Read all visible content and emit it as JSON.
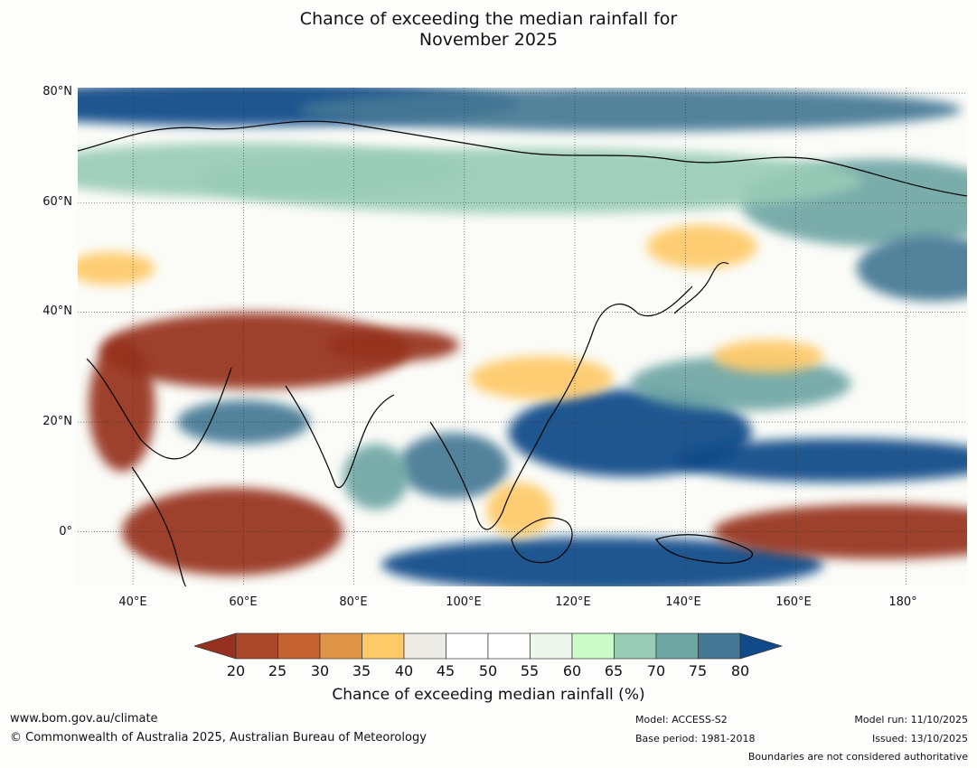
{
  "title": {
    "line1": "Chance of exceeding the median rainfall for",
    "line2": "November 2025"
  },
  "map": {
    "lat_ticks": [
      "80°N",
      "60°N",
      "40°N",
      "20°N",
      "0°"
    ],
    "lat_values": [
      80,
      60,
      40,
      20,
      0
    ],
    "lon_ticks": [
      "40°E",
      "60°E",
      "80°E",
      "100°E",
      "120°E",
      "140°E",
      "160°E",
      "180°"
    ],
    "lon_values": [
      40,
      60,
      80,
      100,
      120,
      140,
      160,
      180
    ],
    "lon_range": [
      30,
      191
    ],
    "lat_range": [
      -10,
      81
    ],
    "features": [
      {
        "kind": "wet",
        "lon": 60,
        "lat": 78,
        "w": 50,
        "h": 4,
        "cat": 80
      },
      {
        "kind": "wet",
        "lon": 130,
        "lat": 77,
        "w": 60,
        "h": 4,
        "cat": 75
      },
      {
        "kind": "wet",
        "lon": 175,
        "lat": 60,
        "w": 25,
        "h": 8,
        "cat": 70
      },
      {
        "kind": "wet",
        "lon": 185,
        "lat": 48,
        "w": 14,
        "h": 6,
        "cat": 75
      },
      {
        "kind": "wet",
        "lon": 112,
        "lat": 64,
        "w": 60,
        "h": 6,
        "cat": 65
      },
      {
        "kind": "wet",
        "lon": 60,
        "lat": 66,
        "w": 40,
        "h": 5,
        "cat": 65
      },
      {
        "kind": "wet",
        "lon": 130,
        "lat": 18,
        "w": 22,
        "h": 8,
        "cat": 80
      },
      {
        "kind": "wet",
        "lon": 168,
        "lat": 13,
        "w": 30,
        "h": 4,
        "cat": 80
      },
      {
        "kind": "wet",
        "lon": 125,
        "lat": -6,
        "w": 40,
        "h": 5,
        "cat": 80
      },
      {
        "kind": "wet",
        "lon": 98,
        "lat": 12,
        "w": 10,
        "h": 6,
        "cat": 75
      },
      {
        "kind": "wet",
        "lon": 150,
        "lat": 27,
        "w": 20,
        "h": 5,
        "cat": 70
      },
      {
        "kind": "wet",
        "lon": 60,
        "lat": 20,
        "w": 12,
        "h": 4,
        "cat": 75
      },
      {
        "kind": "wet",
        "lon": 84,
        "lat": 10,
        "w": 6,
        "h": 6,
        "cat": 70
      },
      {
        "kind": "dry",
        "lon": 62,
        "lat": 33,
        "w": 28,
        "h": 7,
        "cat": 20
      },
      {
        "kind": "dry",
        "lon": 87,
        "lat": 34,
        "w": 12,
        "h": 3,
        "cat": 20
      },
      {
        "kind": "dry",
        "lon": 58,
        "lat": 0,
        "w": 20,
        "h": 8,
        "cat": 20
      },
      {
        "kind": "dry",
        "lon": 175,
        "lat": 0,
        "w": 30,
        "h": 5,
        "cat": 20
      },
      {
        "kind": "dry",
        "lon": 38,
        "lat": 23,
        "w": 6,
        "h": 12,
        "cat": 20
      },
      {
        "kind": "dry",
        "lon": 114,
        "lat": 28,
        "w": 13,
        "h": 4,
        "cat": 35
      },
      {
        "kind": "dry",
        "lon": 143,
        "lat": 52,
        "w": 10,
        "h": 4,
        "cat": 35
      },
      {
        "kind": "dry",
        "lon": 110,
        "lat": 4,
        "w": 6,
        "h": 5,
        "cat": 35
      },
      {
        "kind": "dry",
        "lon": 155,
        "lat": 32,
        "w": 10,
        "h": 3,
        "cat": 35
      },
      {
        "kind": "dry",
        "lon": 36,
        "lat": 48,
        "w": 8,
        "h": 3,
        "cat": 35
      }
    ]
  },
  "colorbar": {
    "colors": [
      "#a9482a",
      "#c46232",
      "#de9446",
      "#fec967",
      "#edebe6",
      "#ffffff",
      "#ffffff",
      "#eef7ec",
      "#ccfcca",
      "#99ccb6",
      "#6ea6a4",
      "#457894"
    ],
    "under_color": "#96311f",
    "over_color": "#114a88",
    "ticks": [
      "20",
      "25",
      "30",
      "35",
      "40",
      "45",
      "50",
      "55",
      "60",
      "65",
      "70",
      "75",
      "80"
    ],
    "label": "Chance of exceeding median rainfall (%)"
  },
  "footer": {
    "website": "www.bom.gov.au/climate",
    "copyright": "© Commonwealth of Australia 2025, Australian Bureau of Meteorology",
    "model": "Model: ACCESS-S2",
    "base_period": "Base period: 1981-2018",
    "model_run": "Model run: 11/10/2025",
    "issued": "Issued: 13/10/2025",
    "disclaimer": "Boundaries are not considered authoritative"
  }
}
